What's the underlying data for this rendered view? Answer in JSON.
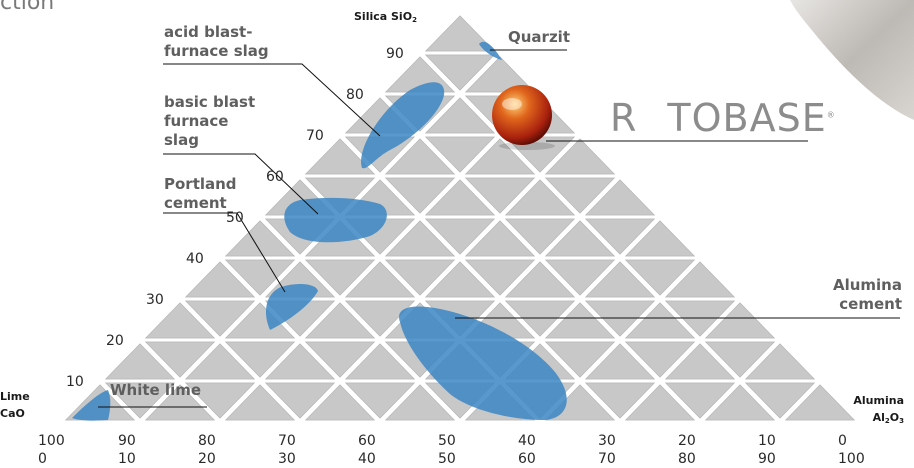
{
  "heading": "ction",
  "brand": {
    "part1": "R",
    "part2": "TOBASE",
    "mark": "®"
  },
  "corners": {
    "top": {
      "name": "Silica SiO",
      "sub": "2"
    },
    "left": {
      "line1": "Lime",
      "line2": "CaO"
    },
    "right": {
      "line1": "Alumina",
      "line2": "Al",
      "sub1": "2",
      "mid": "O",
      "sub2": "3"
    }
  },
  "axis_left_ticks": [
    "10",
    "20",
    "30",
    "40",
    "50",
    "60",
    "70",
    "80",
    "90"
  ],
  "axis_bottom_row1": [
    "100",
    "90",
    "80",
    "70",
    "60",
    "50",
    "40",
    "30",
    "20",
    "10",
    "0"
  ],
  "axis_bottom_row2": [
    "0",
    "10",
    "20",
    "30",
    "40",
    "50",
    "60",
    "70",
    "80",
    "90",
    "100"
  ],
  "regions": [
    {
      "key": "quarzit",
      "label": "Quarzit"
    },
    {
      "key": "acid",
      "label": "acid blast-\nfurnace slag"
    },
    {
      "key": "basic",
      "label": "basic blast\nfurnace\nslag"
    },
    {
      "key": "portland",
      "label": "Portland\ncement"
    },
    {
      "key": "alumina",
      "label": "Alumina\ncement"
    },
    {
      "key": "white",
      "label": "White lime"
    }
  ],
  "colors": {
    "region_fill": "#3b86c4",
    "tile": "#c8c8c8",
    "tile_edge": "#ffffff",
    "label": "#5f5f5f"
  },
  "icons": {
    "sphere": "orange-sphere-icon",
    "texture": "stone-texture-icon"
  }
}
